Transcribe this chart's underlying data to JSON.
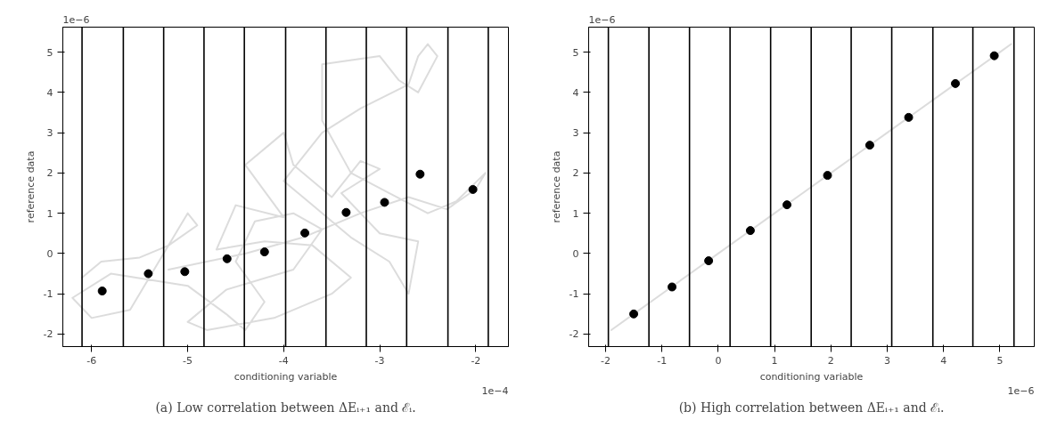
{
  "chart_data": [
    {
      "type": "scatter",
      "subtitle": "(a) Low correlation between ΔEᵢ₊₁ and ℰᵢ.",
      "xlabel": "conditioning variable",
      "ylabel": "reference data",
      "annotations": [
        "1e−6",
        "1e−4"
      ],
      "xlim": [
        -6.3,
        -1.66
      ],
      "ylim": [
        -2.31,
        5.62
      ],
      "xticks": [
        -6,
        -5,
        -4,
        -3,
        -2
      ],
      "yticks": [
        -2,
        -1,
        0,
        1,
        2,
        3,
        4,
        5
      ],
      "grid": false,
      "ref_lines": [
        {
          "axis": "x",
          "value": -6.1,
          "color": "#000000"
        },
        {
          "axis": "x",
          "value": -5.67,
          "color": "#000000"
        },
        {
          "axis": "x",
          "value": -5.25,
          "color": "#000000"
        },
        {
          "axis": "x",
          "value": -4.83,
          "color": "#000000"
        },
        {
          "axis": "x",
          "value": -4.41,
          "color": "#000000"
        },
        {
          "axis": "x",
          "value": -3.98,
          "color": "#000000"
        },
        {
          "axis": "x",
          "value": -3.56,
          "color": "#000000"
        },
        {
          "axis": "x",
          "value": -3.14,
          "color": "#000000"
        },
        {
          "axis": "x",
          "value": -2.72,
          "color": "#000000"
        },
        {
          "axis": "x",
          "value": -2.29,
          "color": "#000000"
        },
        {
          "axis": "x",
          "value": -1.87,
          "color": "#000000"
        }
      ],
      "series": [
        {
          "type": "line",
          "color": "#d3d3d3",
          "x": [
            -6.1,
            -5.9,
            -5.5,
            -5.2,
            -4.9,
            -5.0,
            -5.4,
            -5.6,
            -6.0,
            -6.2,
            -5.8,
            -5.0,
            -4.6,
            -4.4,
            -4.2,
            -4.5,
            -4.3,
            -3.9,
            -3.6,
            -3.9,
            -4.6,
            -5.0,
            -4.8,
            -4.1,
            -3.5,
            -3.3,
            -3.7,
            -4.2,
            -4.7,
            -4.5,
            -4.0,
            -4.4,
            -4.0,
            -3.9,
            -3.5,
            -3.2,
            -3.0,
            -3.4,
            -3.0,
            -2.6,
            -2.7,
            -2.9,
            -3.3,
            -3.7,
            -4.0,
            -3.6,
            -3.2,
            -2.7,
            -2.6,
            -2.5,
            -2.4,
            -2.6,
            -2.8,
            -3.0,
            -3.6,
            -3.6,
            -3.3,
            -2.9,
            -2.5,
            -2.2,
            -1.9,
            -2.0,
            -2.3,
            -2.7,
            -3.2,
            -3.8,
            -4.4,
            -5.2
          ],
          "values": [
            -0.6,
            -0.2,
            -0.1,
            0.2,
            0.7,
            1.0,
            -0.6,
            -1.4,
            -1.6,
            -1.1,
            -0.5,
            -0.8,
            -1.5,
            -1.9,
            -1.2,
            -0.2,
            0.8,
            1.0,
            0.6,
            -0.4,
            -0.9,
            -1.7,
            -1.9,
            -1.6,
            -1.0,
            -0.6,
            0.2,
            0.3,
            0.1,
            1.2,
            0.9,
            2.2,
            3.0,
            2.2,
            1.4,
            2.3,
            2.1,
            1.5,
            0.5,
            0.3,
            -1.0,
            -0.2,
            0.4,
            1.2,
            1.8,
            3.0,
            3.6,
            4.2,
            4.9,
            5.2,
            4.9,
            4.0,
            4.3,
            4.9,
            4.7,
            3.3,
            2.0,
            1.5,
            1.0,
            1.3,
            2.0,
            1.6,
            1.1,
            1.4,
            1.0,
            0.4,
            0.0,
            -0.4
          ]
        },
        {
          "color": "#000000",
          "marker": "circle",
          "x": [
            -5.89,
            -5.41,
            -5.03,
            -4.59,
            -4.2,
            -3.78,
            -3.35,
            -2.95,
            -2.58,
            -2.03
          ],
          "values": [
            -0.93,
            -0.5,
            -0.45,
            -0.13,
            0.04,
            0.51,
            1.02,
            1.27,
            1.97,
            1.59
          ]
        }
      ]
    },
    {
      "type": "scatter",
      "subtitle": "(b) High correlation between ΔEᵢ₊₁ and ℰᵢ.",
      "xlabel": "conditioning variable",
      "ylabel": "reference data",
      "annotations": [
        "1e−6",
        "1e−6"
      ],
      "xlim": [
        -2.3,
        5.61
      ],
      "ylim": [
        -2.31,
        5.62
      ],
      "xticks": [
        -2,
        -1,
        0,
        1,
        2,
        3,
        4,
        5
      ],
      "yticks": [
        -2,
        -1,
        0,
        1,
        2,
        3,
        4,
        5
      ],
      "grid": false,
      "ref_lines": [
        {
          "axis": "x",
          "value": -1.95,
          "color": "#000000"
        },
        {
          "axis": "x",
          "value": -1.23,
          "color": "#000000"
        },
        {
          "axis": "x",
          "value": -0.51,
          "color": "#000000"
        },
        {
          "axis": "x",
          "value": 0.21,
          "color": "#000000"
        },
        {
          "axis": "x",
          "value": 0.93,
          "color": "#000000"
        },
        {
          "axis": "x",
          "value": 1.65,
          "color": "#000000"
        },
        {
          "axis": "x",
          "value": 2.36,
          "color": "#000000"
        },
        {
          "axis": "x",
          "value": 3.08,
          "color": "#000000"
        },
        {
          "axis": "x",
          "value": 3.81,
          "color": "#000000"
        },
        {
          "axis": "x",
          "value": 4.52,
          "color": "#000000"
        },
        {
          "axis": "x",
          "value": 5.25,
          "color": "#000000"
        }
      ],
      "series": [
        {
          "type": "line",
          "color": "#d3d3d3",
          "x": [
            -1.9,
            -1.5,
            -1.0,
            -0.5,
            0.0,
            0.5,
            1.0,
            1.5,
            2.0,
            2.5,
            3.0,
            3.5,
            4.0,
            4.5,
            5.0,
            5.2
          ],
          "values": [
            -1.9,
            -1.5,
            -1.0,
            -0.5,
            0.0,
            0.5,
            1.0,
            1.5,
            2.0,
            2.5,
            3.0,
            3.5,
            4.0,
            4.5,
            5.0,
            5.2
          ]
        },
        {
          "color": "#000000",
          "marker": "circle",
          "x": [
            -1.5,
            -0.82,
            -0.17,
            0.57,
            1.22,
            1.94,
            2.69,
            3.38,
            4.21,
            4.9
          ],
          "values": [
            -1.5,
            -0.83,
            -0.18,
            0.57,
            1.21,
            1.94,
            2.69,
            3.38,
            4.22,
            4.91
          ]
        }
      ]
    }
  ]
}
